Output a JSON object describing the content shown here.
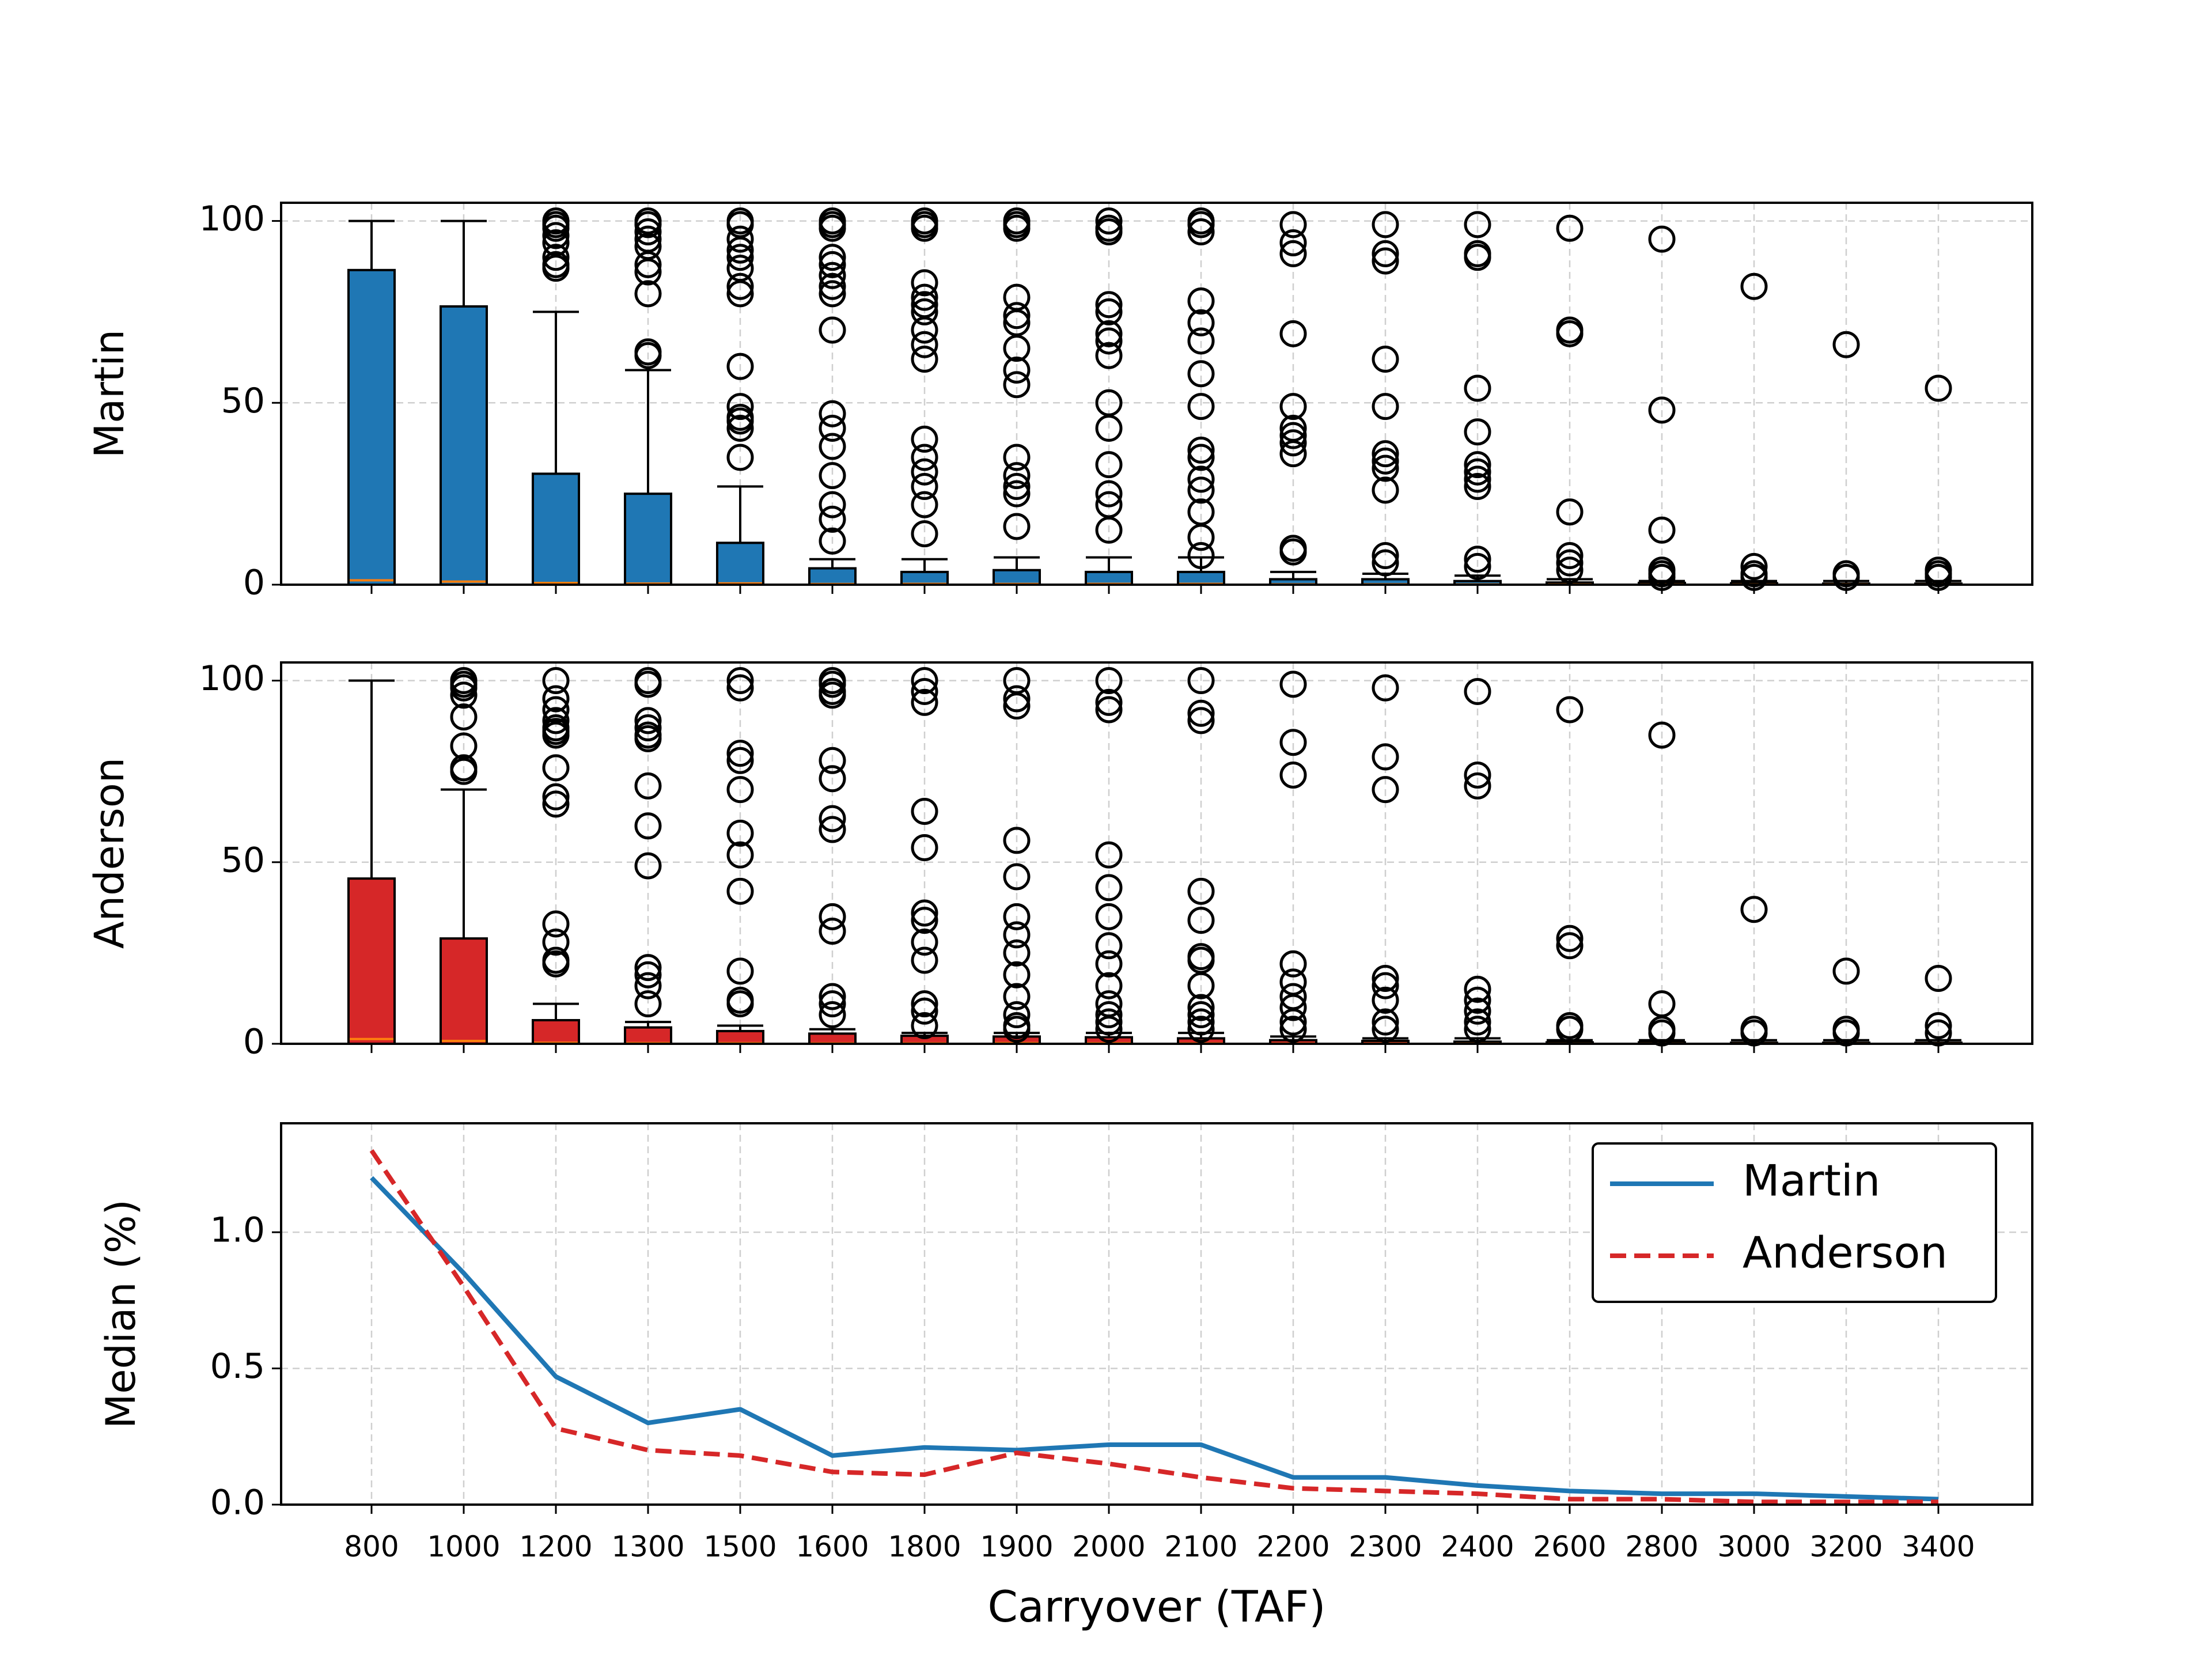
{
  "chart_data": [
    {
      "type": "box",
      "ylabel": "Martin",
      "ylim": [
        0,
        105
      ],
      "yticks": [
        0,
        50,
        100
      ],
      "grid": true,
      "fill_color": "#1f77b4",
      "median_color": "#ff7f0e",
      "categories": [
        "800",
        "1000",
        "1200",
        "1300",
        "1500",
        "1600",
        "1800",
        "1900",
        "2000",
        "2100",
        "2200",
        "2300",
        "2400",
        "2600",
        "2800",
        "3000",
        "3200",
        "3400"
      ],
      "boxes": [
        {
          "q1": 0,
          "median": 1.2,
          "q3": 86.5,
          "whisker_low": 0,
          "whisker_high": 100,
          "outliers": []
        },
        {
          "q1": 0,
          "median": 0.85,
          "q3": 76.5,
          "whisker_low": 0,
          "whisker_high": 100,
          "outliers": []
        },
        {
          "q1": 0,
          "median": 0.47,
          "q3": 30.5,
          "whisker_low": 0,
          "whisker_high": 75,
          "outliers": [
            100,
            99,
            98,
            96,
            94,
            90,
            88,
            87
          ]
        },
        {
          "q1": 0,
          "median": 0.3,
          "q3": 25,
          "whisker_low": 0,
          "whisker_high": 59,
          "outliers": [
            100,
            99,
            97,
            95,
            93,
            88,
            86,
            80,
            64,
            63
          ]
        },
        {
          "q1": 0,
          "median": 0.35,
          "q3": 11.5,
          "whisker_low": 0,
          "whisker_high": 27,
          "outliers": [
            100,
            99,
            95,
            92,
            90,
            87,
            82,
            80,
            60,
            49,
            46,
            45,
            43,
            35
          ]
        },
        {
          "q1": 0,
          "median": 0.18,
          "q3": 4.5,
          "whisker_low": 0,
          "whisker_high": 7,
          "outliers": [
            100,
            99,
            98,
            90,
            88,
            85,
            82,
            80,
            70,
            47,
            43,
            38,
            30,
            22,
            18,
            12
          ]
        },
        {
          "q1": 0,
          "median": 0.21,
          "q3": 3.5,
          "whisker_low": 0,
          "whisker_high": 7,
          "outliers": [
            100,
            99,
            98,
            83,
            79,
            77,
            75,
            70,
            66,
            62,
            40,
            35,
            31,
            27,
            22,
            14
          ]
        },
        {
          "q1": 0,
          "median": 0.2,
          "q3": 4,
          "whisker_low": 0,
          "whisker_high": 7.5,
          "outliers": [
            100,
            99,
            98,
            79,
            74,
            72,
            65,
            59,
            55,
            35,
            30,
            27,
            25,
            16
          ]
        },
        {
          "q1": 0,
          "median": 0.22,
          "q3": 3.5,
          "whisker_low": 0,
          "whisker_high": 7.5,
          "outliers": [
            100,
            98,
            97,
            77,
            75,
            69,
            67,
            63,
            50,
            43,
            33,
            25,
            22,
            15
          ]
        },
        {
          "q1": 0,
          "median": 0.22,
          "q3": 3.5,
          "whisker_low": 0,
          "whisker_high": 7.5,
          "outliers": [
            100,
            99,
            97,
            78,
            72,
            67,
            58,
            49,
            37,
            35,
            29,
            26,
            20,
            13,
            8
          ]
        },
        {
          "q1": 0,
          "median": 0.1,
          "q3": 1.5,
          "whisker_low": 0,
          "whisker_high": 3.5,
          "outliers": [
            99,
            94,
            91,
            69,
            49,
            43,
            41,
            39,
            36,
            10,
            9
          ]
        },
        {
          "q1": 0,
          "median": 0.1,
          "q3": 1.5,
          "whisker_low": 0,
          "whisker_high": 3,
          "outliers": [
            99,
            91,
            89,
            62,
            49,
            36,
            34,
            32,
            26,
            8,
            6
          ]
        },
        {
          "q1": 0,
          "median": 0.07,
          "q3": 1,
          "whisker_low": 0,
          "whisker_high": 2.5,
          "outliers": [
            99,
            91,
            90,
            54,
            42,
            33,
            31,
            29,
            27,
            7,
            5
          ]
        },
        {
          "q1": 0,
          "median": 0.05,
          "q3": 0.6,
          "whisker_low": 0,
          "whisker_high": 1.5,
          "outliers": [
            98,
            70,
            69,
            20,
            8,
            6,
            4
          ]
        },
        {
          "q1": 0,
          "median": 0.04,
          "q3": 0.5,
          "whisker_low": 0,
          "whisker_high": 1,
          "outliers": [
            95,
            48,
            15,
            4,
            3,
            2
          ]
        },
        {
          "q1": 0,
          "median": 0.04,
          "q3": 0.4,
          "whisker_low": 0,
          "whisker_high": 1,
          "outliers": [
            82,
            5,
            3,
            2
          ]
        },
        {
          "q1": 0,
          "median": 0.03,
          "q3": 0.3,
          "whisker_low": 0,
          "whisker_high": 1,
          "outliers": [
            66,
            3,
            2
          ]
        },
        {
          "q1": 0,
          "median": 0.02,
          "q3": 0.3,
          "whisker_low": 0,
          "whisker_high": 1,
          "outliers": [
            54,
            4,
            3,
            2
          ]
        }
      ]
    },
    {
      "type": "box",
      "ylabel": "Anderson",
      "ylim": [
        0,
        105
      ],
      "yticks": [
        0,
        50,
        100
      ],
      "grid": true,
      "fill_color": "#d62728",
      "median_color": "#ff7f0e",
      "categories": [
        "800",
        "1000",
        "1200",
        "1300",
        "1500",
        "1600",
        "1800",
        "1900",
        "2000",
        "2100",
        "2200",
        "2300",
        "2400",
        "2600",
        "2800",
        "3000",
        "3200",
        "3400"
      ],
      "boxes": [
        {
          "q1": 0,
          "median": 1.3,
          "q3": 45.5,
          "whisker_low": 0,
          "whisker_high": 100,
          "outliers": []
        },
        {
          "q1": 0,
          "median": 0.8,
          "q3": 29,
          "whisker_low": 0,
          "whisker_high": 70,
          "outliers": [
            100,
            99,
            98,
            96,
            90,
            82,
            76,
            75
          ]
        },
        {
          "q1": 0,
          "median": 0.28,
          "q3": 6.5,
          "whisker_low": 0,
          "whisker_high": 11,
          "outliers": [
            100,
            95,
            92,
            89,
            87,
            86,
            85,
            76,
            68,
            66,
            33,
            28,
            23,
            22
          ]
        },
        {
          "q1": 0,
          "median": 0.2,
          "q3": 4.5,
          "whisker_low": 0,
          "whisker_high": 6,
          "outliers": [
            100,
            99,
            89,
            87,
            85,
            84,
            71,
            60,
            49,
            21,
            19,
            16,
            11
          ]
        },
        {
          "q1": 0,
          "median": 0.18,
          "q3": 3.5,
          "whisker_low": 0,
          "whisker_high": 5,
          "outliers": [
            100,
            98,
            80,
            78,
            70,
            58,
            52,
            42,
            20,
            12,
            11
          ]
        },
        {
          "q1": 0,
          "median": 0.12,
          "q3": 2.8,
          "whisker_low": 0,
          "whisker_high": 4,
          "outliers": [
            100,
            99,
            97,
            96,
            78,
            73,
            62,
            59,
            35,
            31,
            13,
            11,
            8
          ]
        },
        {
          "q1": 0,
          "median": 0.11,
          "q3": 2.2,
          "whisker_low": 0,
          "whisker_high": 3,
          "outliers": [
            100,
            97,
            94,
            64,
            54,
            36,
            34,
            28,
            23,
            11,
            9,
            5
          ]
        },
        {
          "q1": 0,
          "median": 0.19,
          "q3": 2,
          "whisker_low": 0,
          "whisker_high": 3,
          "outliers": [
            100,
            95,
            93,
            56,
            46,
            35,
            30,
            25,
            19,
            13,
            8,
            5,
            4
          ]
        },
        {
          "q1": 0,
          "median": 0.15,
          "q3": 1.8,
          "whisker_low": 0,
          "whisker_high": 3,
          "outliers": [
            100,
            94,
            92,
            52,
            43,
            35,
            27,
            22,
            16,
            11,
            8,
            6,
            4
          ]
        },
        {
          "q1": 0,
          "median": 0.1,
          "q3": 1.5,
          "whisker_low": 0,
          "whisker_high": 3,
          "outliers": [
            100,
            91,
            89,
            42,
            34,
            24,
            23,
            16,
            10,
            8,
            6,
            4
          ]
        },
        {
          "q1": 0,
          "median": 0.06,
          "q3": 1,
          "whisker_low": 0,
          "whisker_high": 2,
          "outliers": [
            99,
            83,
            74,
            22,
            17,
            13,
            10,
            6,
            4
          ]
        },
        {
          "q1": 0,
          "median": 0.05,
          "q3": 0.8,
          "whisker_low": 0,
          "whisker_high": 1.5,
          "outliers": [
            98,
            79,
            70,
            18,
            16,
            12,
            6,
            4
          ]
        },
        {
          "q1": 0,
          "median": 0.04,
          "q3": 0.6,
          "whisker_low": 0,
          "whisker_high": 1.5,
          "outliers": [
            97,
            74,
            71,
            15,
            12,
            9,
            6,
            4
          ]
        },
        {
          "q1": 0,
          "median": 0.02,
          "q3": 0.4,
          "whisker_low": 0,
          "whisker_high": 1,
          "outliers": [
            92,
            29,
            27,
            5,
            4
          ]
        },
        {
          "q1": 0,
          "median": 0.02,
          "q3": 0.4,
          "whisker_low": 0,
          "whisker_high": 1,
          "outliers": [
            85,
            11,
            4,
            3
          ]
        },
        {
          "q1": 0,
          "median": 0.01,
          "q3": 0.3,
          "whisker_low": 0,
          "whisker_high": 1,
          "outliers": [
            37,
            4,
            3
          ]
        },
        {
          "q1": 0,
          "median": 0.01,
          "q3": 0.3,
          "whisker_low": 0,
          "whisker_high": 1,
          "outliers": [
            20,
            4,
            3
          ]
        },
        {
          "q1": 0,
          "median": 0.01,
          "q3": 0.3,
          "whisker_low": 0,
          "whisker_high": 1,
          "outliers": [
            18,
            5,
            3
          ]
        }
      ]
    },
    {
      "type": "line",
      "xlabel": "Carryover (TAF)",
      "ylabel": "Median (%)",
      "ylim": [
        0,
        1.4
      ],
      "yticks": [
        "0.0",
        "0.5",
        "1.0"
      ],
      "grid": true,
      "legend": "top-right",
      "categories": [
        "800",
        "1000",
        "1200",
        "1300",
        "1500",
        "1600",
        "1800",
        "1900",
        "2000",
        "2100",
        "2200",
        "2300",
        "2400",
        "2600",
        "2800",
        "3000",
        "3200",
        "3400"
      ],
      "series": [
        {
          "name": "Martin",
          "color": "#1f77b4",
          "style": "solid",
          "values": [
            1.2,
            0.85,
            0.47,
            0.3,
            0.35,
            0.18,
            0.21,
            0.2,
            0.22,
            0.22,
            0.1,
            0.1,
            0.07,
            0.05,
            0.04,
            0.04,
            0.03,
            0.02
          ]
        },
        {
          "name": "Anderson",
          "color": "#d62728",
          "style": "dashed",
          "values": [
            1.3,
            0.8,
            0.28,
            0.2,
            0.18,
            0.12,
            0.11,
            0.19,
            0.15,
            0.1,
            0.06,
            0.05,
            0.04,
            0.02,
            0.02,
            0.01,
            0.01,
            0.01
          ]
        }
      ]
    }
  ]
}
